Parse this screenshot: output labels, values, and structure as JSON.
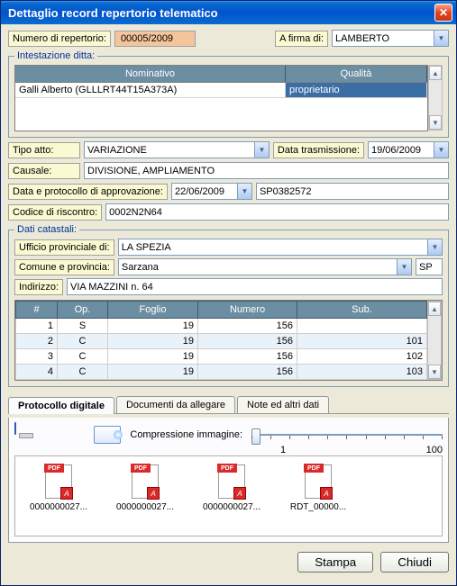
{
  "window": {
    "title": "Dettaglio record repertorio telematico"
  },
  "top": {
    "numRep_label": "Numero di repertorio:",
    "numRep_value": "00005/2009",
    "firma_label": "A firma di:",
    "firma_value": "LAMBERTO"
  },
  "intestazione": {
    "legend": "Intestazione ditta:",
    "headers": {
      "nominativo": "Nominativo",
      "qualita": "Qualità"
    },
    "rows": [
      {
        "nominativo": "Galli Alberto (GLLLRT44T15A373A)",
        "qualita": "proprietario",
        "qualita_color": "#0033cc",
        "qualita_bg": "#3a6ea5"
      }
    ],
    "col_widths": {
      "nominativo": 300,
      "qualita": 155
    }
  },
  "block2": {
    "tipoAtto_label": "Tipo atto:",
    "tipoAtto_value": "VARIAZIONE",
    "dataTrasm_label": "Data trasmissione:",
    "dataTrasm_value": "19/06/2009",
    "causale_label": "Causale:",
    "causale_value": "DIVISIONE, AMPLIAMENTO",
    "dataProt_label": "Data e protocollo di approvazione:",
    "dataProt_date": "22/06/2009",
    "dataProt_num": "SP0382572",
    "codRisc_label": "Codice di riscontro:",
    "codRisc_value": "0002N2N64"
  },
  "catasto": {
    "legend": "Dati catastali:",
    "uffProv_label": "Ufficio provinciale di:",
    "uffProv_value": "LA SPEZIA",
    "comune_label": "Comune e provincia:",
    "comune_value": "Sarzana",
    "prov_value": "SP",
    "indirizzo_label": "Indirizzo:",
    "indirizzo_value": "VIA MAZZINI n. 64",
    "headers": {
      "n": "#",
      "op": "Op.",
      "foglio": "Foglio",
      "numero": "Numero",
      "sub": "Sub."
    },
    "rows": [
      {
        "n": "1",
        "op": "S",
        "foglio": "19",
        "numero": "156",
        "sub": ""
      },
      {
        "n": "2",
        "op": "C",
        "foglio": "19",
        "numero": "156",
        "sub": "101"
      },
      {
        "n": "3",
        "op": "C",
        "foglio": "19",
        "numero": "156",
        "sub": "102"
      },
      {
        "n": "4",
        "op": "C",
        "foglio": "19",
        "numero": "156",
        "sub": "103"
      }
    ],
    "col_widths": {
      "n": 46,
      "op": 56,
      "foglio": 100,
      "numero": 110,
      "sub": 108
    }
  },
  "tabs": {
    "t1": "Protocollo digitale",
    "t2": "Documenti da allegare",
    "t3": "Note ed altri dati",
    "compress_label": "Compressione immagine:",
    "slider_min": "1",
    "slider_max": "100",
    "files": [
      {
        "name": "0000000027..."
      },
      {
        "name": "0000000027..."
      },
      {
        "name": "0000000027..."
      },
      {
        "name": "RDT_00000..."
      }
    ]
  },
  "footer": {
    "stampa": "Stampa",
    "chiudi": "Chiudi"
  }
}
